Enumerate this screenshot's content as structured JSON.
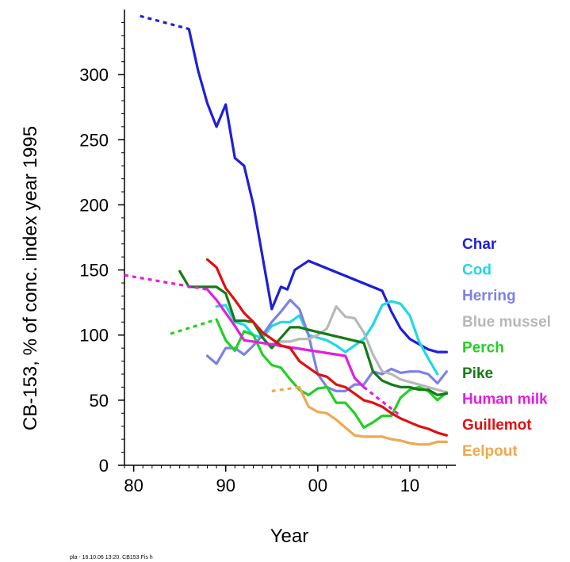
{
  "chart_data": {
    "type": "line",
    "title": "",
    "xlabel": "Year",
    "ylabel": "CB-153, % of conc. index year 1995",
    "xlim": [
      1979,
      2015
    ],
    "ylim": [
      0,
      350
    ],
    "x_ticks": [
      {
        "value": 1980,
        "label": "80"
      },
      {
        "value": 1990,
        "label": "90"
      },
      {
        "value": 2000,
        "label": "00"
      },
      {
        "value": 2010,
        "label": "10"
      }
    ],
    "y_ticks": [
      {
        "value": 0,
        "label": "0"
      },
      {
        "value": 50,
        "label": "50"
      },
      {
        "value": 100,
        "label": "100"
      },
      {
        "value": 150,
        "label": "150"
      },
      {
        "value": 200,
        "label": "200"
      },
      {
        "value": 250,
        "label": "250"
      },
      {
        "value": 300,
        "label": "300"
      }
    ],
    "legend_position": "right",
    "series": [
      {
        "name": "Char",
        "color": "#1f1fd8",
        "dashed": [
          [
            [
              1980.7,
              345
            ],
            [
              1986,
              335
            ]
          ],
          [
            [
              1999,
              157
            ],
            [
              2007,
              134
            ]
          ]
        ],
        "values": [
          [
            1986,
            335
          ],
          [
            1987,
            303
          ],
          [
            1988,
            278
          ],
          [
            1989,
            260
          ],
          [
            1990,
            277
          ],
          [
            1991,
            236
          ],
          [
            1992,
            230
          ],
          [
            1993,
            200
          ],
          [
            1994,
            160
          ],
          [
            1995,
            120
          ],
          [
            1996,
            137
          ],
          [
            1996.7,
            135
          ],
          [
            1997.5,
            150
          ],
          [
            1999,
            157
          ],
          [
            2007,
            134
          ],
          [
            2008,
            118
          ],
          [
            2009,
            105
          ],
          [
            2010,
            97
          ],
          [
            2011,
            93
          ],
          [
            2012,
            89
          ],
          [
            2013,
            87
          ],
          [
            2014,
            87
          ]
        ]
      },
      {
        "name": "Cod",
        "color": "#20d8e8",
        "dashed": [],
        "values": [
          [
            1989,
            122
          ],
          [
            1990,
            123
          ],
          [
            1991,
            110
          ],
          [
            1992,
            108
          ],
          [
            1993,
            100
          ],
          [
            1994,
            98
          ],
          [
            1995,
            107
          ],
          [
            1996,
            110
          ],
          [
            1997,
            110
          ],
          [
            1998,
            115
          ],
          [
            1999,
            100
          ],
          [
            2000,
            98
          ],
          [
            2001,
            96
          ],
          [
            2002,
            92
          ],
          [
            2003,
            87
          ],
          [
            2004,
            92
          ],
          [
            2005,
            97
          ],
          [
            2006,
            108
          ],
          [
            2007,
            123
          ],
          [
            2008,
            126
          ],
          [
            2009,
            124
          ],
          [
            2010,
            115
          ],
          [
            2011,
            95
          ],
          [
            2012,
            82
          ],
          [
            2013,
            70
          ]
        ]
      },
      {
        "name": "Herring",
        "color": "#7f80e6",
        "dashed": [],
        "values": [
          [
            1988,
            84
          ],
          [
            1989,
            78
          ],
          [
            1990,
            90
          ],
          [
            1991,
            90
          ],
          [
            1992,
            85
          ],
          [
            1993,
            92
          ],
          [
            1994,
            100
          ],
          [
            1995,
            110
          ],
          [
            1996,
            118
          ],
          [
            1997,
            127
          ],
          [
            1998,
            120
          ],
          [
            1999,
            100
          ],
          [
            2000,
            70
          ],
          [
            2001,
            60
          ],
          [
            2002,
            57
          ],
          [
            2003,
            57
          ],
          [
            2004,
            62
          ],
          [
            2005,
            62
          ],
          [
            2006,
            72
          ],
          [
            2007,
            70
          ],
          [
            2008,
            74
          ],
          [
            2009,
            71
          ],
          [
            2010,
            72
          ],
          [
            2011,
            72
          ],
          [
            2012,
            70
          ],
          [
            2013,
            63
          ],
          [
            2014,
            72
          ]
        ]
      },
      {
        "name": "Blue mussel",
        "color": "#b8b8b8",
        "dashed": [],
        "values": [
          [
            1995,
            93
          ],
          [
            1996,
            95
          ],
          [
            1997,
            95
          ],
          [
            1998,
            97
          ],
          [
            1999,
            97
          ],
          [
            2000,
            100
          ],
          [
            2001,
            105
          ],
          [
            2002,
            122
          ],
          [
            2003,
            114
          ],
          [
            2004,
            113
          ],
          [
            2005,
            102
          ],
          [
            2006,
            85
          ],
          [
            2007,
            72
          ],
          [
            2008,
            70
          ],
          [
            2009,
            66
          ],
          [
            2010,
            64
          ],
          [
            2011,
            62
          ],
          [
            2012,
            60
          ],
          [
            2013,
            58
          ],
          [
            2014,
            56
          ]
        ]
      },
      {
        "name": "Perch",
        "color": "#22d022",
        "dashed": [
          [
            [
              1984,
              101
            ],
            [
              1989,
              112
            ]
          ]
        ],
        "values": [
          [
            1989,
            112
          ],
          [
            1990,
            96
          ],
          [
            1991,
            88
          ],
          [
            1992,
            103
          ],
          [
            1993,
            100
          ],
          [
            1994,
            85
          ],
          [
            1995,
            77
          ],
          [
            1996,
            75
          ],
          [
            1997,
            66
          ],
          [
            1998,
            58
          ],
          [
            1999,
            54
          ],
          [
            2000,
            59
          ],
          [
            2001,
            60
          ],
          [
            2002,
            48
          ],
          [
            2003,
            48
          ],
          [
            2004,
            40
          ],
          [
            2005,
            29
          ],
          [
            2006,
            33
          ],
          [
            2007,
            38
          ],
          [
            2008,
            38
          ],
          [
            2009,
            52
          ],
          [
            2010,
            58
          ],
          [
            2011,
            60
          ],
          [
            2012,
            57
          ],
          [
            2013,
            50
          ],
          [
            2014,
            56
          ]
        ]
      },
      {
        "name": "Pike",
        "color": "#167a16",
        "dashed": [
          [
            [
              1999,
              104
            ],
            [
              2005,
              94
            ]
          ]
        ],
        "values": [
          [
            1985,
            149
          ],
          [
            1986,
            137
          ],
          [
            1987,
            137
          ],
          [
            1988,
            137
          ],
          [
            1989,
            137
          ],
          [
            1990,
            132
          ],
          [
            1991,
            111
          ],
          [
            1992,
            111
          ],
          [
            1993,
            110
          ],
          [
            1994,
            98
          ],
          [
            1995,
            90
          ],
          [
            1996,
            98
          ],
          [
            1997,
            106
          ],
          [
            1998,
            106
          ],
          [
            1999,
            104
          ],
          [
            2005,
            94
          ],
          [
            2006,
            72
          ],
          [
            2007,
            65
          ],
          [
            2008,
            62
          ],
          [
            2009,
            60
          ],
          [
            2010,
            60
          ],
          [
            2011,
            58
          ],
          [
            2012,
            58
          ],
          [
            2013,
            54
          ],
          [
            2014,
            55
          ]
        ]
      },
      {
        "name": "Human milk",
        "color": "#e020e0",
        "dashed": [
          [
            [
              1979,
              146
            ],
            [
              1988,
              135
            ]
          ],
          [
            [
              1993,
              95
            ],
            [
              2003,
              84
            ]
          ],
          [
            [
              2005,
              60
            ],
            [
              2009,
              38
            ]
          ]
        ],
        "values": [
          [
            1988,
            135
          ],
          [
            1989,
            127
          ],
          [
            1990,
            117
          ],
          [
            1991,
            107
          ],
          [
            1992,
            96
          ],
          [
            1993,
            95
          ],
          [
            2003,
            84
          ],
          [
            2004,
            67
          ],
          [
            2005,
            60
          ]
        ]
      },
      {
        "name": "Guillemot",
        "color": "#e01010",
        "dashed": [],
        "values": [
          [
            1988,
            158
          ],
          [
            1989,
            152
          ],
          [
            1990,
            136
          ],
          [
            1991,
            127
          ],
          [
            1992,
            117
          ],
          [
            1993,
            110
          ],
          [
            1994,
            102
          ],
          [
            1995,
            97
          ],
          [
            1996,
            92
          ],
          [
            1997,
            90
          ],
          [
            1998,
            80
          ],
          [
            1999,
            75
          ],
          [
            2000,
            70
          ],
          [
            2001,
            68
          ],
          [
            2002,
            62
          ],
          [
            2003,
            60
          ],
          [
            2004,
            55
          ],
          [
            2005,
            50
          ],
          [
            2006,
            48
          ],
          [
            2007,
            45
          ],
          [
            2008,
            40
          ],
          [
            2009,
            36
          ],
          [
            2010,
            33
          ],
          [
            2011,
            30
          ],
          [
            2012,
            28
          ],
          [
            2013,
            25
          ],
          [
            2014,
            23
          ]
        ]
      },
      {
        "name": "Eelpout",
        "color": "#f0a850",
        "dashed": [
          [
            [
              1995,
              57
            ],
            [
              1998,
              60
            ]
          ]
        ],
        "values": [
          [
            1998,
            60
          ],
          [
            1999,
            45
          ],
          [
            2000,
            41
          ],
          [
            2001,
            40
          ],
          [
            2002,
            35
          ],
          [
            2003,
            29
          ],
          [
            2004,
            23
          ],
          [
            2005,
            22
          ],
          [
            2006,
            22
          ],
          [
            2007,
            22
          ],
          [
            2008,
            20
          ],
          [
            2009,
            19
          ],
          [
            2010,
            17
          ],
          [
            2011,
            16
          ],
          [
            2012,
            16
          ],
          [
            2013,
            18
          ],
          [
            2014,
            18
          ]
        ]
      }
    ]
  },
  "footer_note": "pla - 16.10.06 13:20. CB153  Fis h"
}
